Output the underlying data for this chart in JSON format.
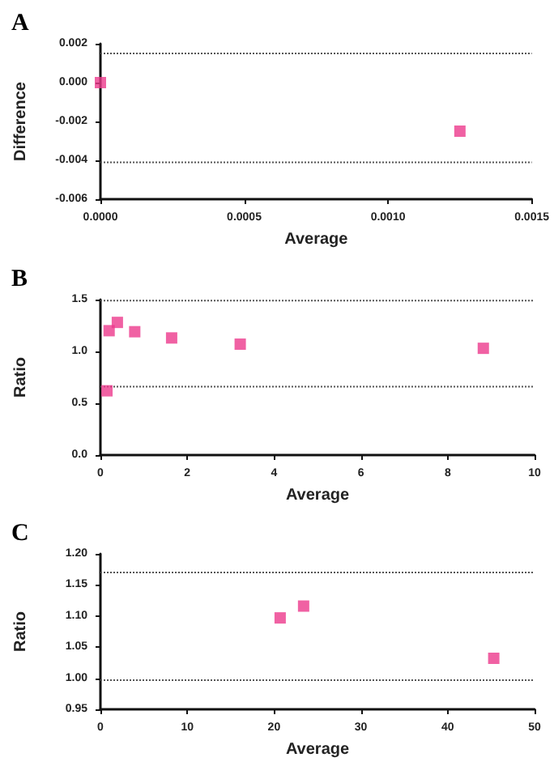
{
  "chart_data": [
    {
      "type": "scatter",
      "title": "A",
      "xlabel": "Average",
      "ylabel": "Difference",
      "x": [
        0,
        0.00125
      ],
      "values": [
        0,
        -0.0025
      ],
      "color": "#ec3a8c",
      "marker": "square",
      "grid": false,
      "xlim": [
        0,
        0.0015
      ],
      "xticks": [
        {
          "value": 0,
          "label": "0.0000"
        },
        0.0005,
        {
          "value": 0.001,
          "label": "0.0010"
        },
        0.0015
      ],
      "ylim": [
        -0.006,
        0.002
      ],
      "yticks": [
        {
          "value": -0.006,
          "label": "-0.006"
        },
        {
          "value": -0.004,
          "label": "-0.004"
        },
        {
          "value": -0.002,
          "label": "-0.002"
        },
        {
          "value": 0,
          "label": "0.000"
        },
        {
          "value": 0.002,
          "label": "0.002"
        }
      ],
      "ref_lines": [
        {
          "axis": "y",
          "value": 0.0015,
          "color": "#555555",
          "line_style": "dotted"
        },
        {
          "axis": "y",
          "value": -0.0041,
          "color": "#555555",
          "line_style": "dotted"
        }
      ]
    },
    {
      "type": "scatter",
      "title": "B",
      "xlabel": "Average",
      "ylabel": "Ratio",
      "x": [
        0.15,
        0.2,
        0.39,
        0.79,
        1.64,
        3.22,
        8.82
      ],
      "values": [
        0.62,
        1.2,
        1.28,
        1.19,
        1.13,
        1.07,
        1.03
      ],
      "color": "#ec3a8c",
      "marker": "square",
      "grid": false,
      "xlim": [
        0,
        10
      ],
      "xticks": [
        0,
        2,
        4,
        6,
        8,
        10
      ],
      "ylim": [
        0,
        1.5
      ],
      "yticks": [
        {
          "value": 0,
          "label": "0.0"
        },
        0.5,
        {
          "value": 1,
          "label": "1.0"
        },
        1.5
      ],
      "ref_lines": [
        {
          "axis": "y",
          "value": 1.49,
          "color": "#555555",
          "line_style": "dotted"
        },
        {
          "axis": "y",
          "value": 0.66,
          "color": "#555555",
          "line_style": "dotted"
        }
      ]
    },
    {
      "type": "scatter",
      "title": "C",
      "xlabel": "Average",
      "ylabel": "Ratio",
      "x": [
        20.7,
        23.4,
        45.3
      ],
      "values": [
        1.097,
        1.116,
        1.032
      ],
      "color": "#ec3a8c",
      "marker": "square",
      "grid": false,
      "xlim": [
        0,
        50
      ],
      "xticks": [
        0,
        10,
        20,
        30,
        40,
        50
      ],
      "ylim": [
        0.95,
        1.2
      ],
      "yticks": [
        0.95,
        {
          "value": 1,
          "label": "1.00"
        },
        1.05,
        {
          "value": 1.1,
          "label": "1.10"
        },
        1.15,
        {
          "value": 1.2,
          "label": "1.20"
        }
      ],
      "ref_lines": [
        {
          "axis": "y",
          "value": 1.17,
          "color": "#555555",
          "line_style": "dotted"
        },
        {
          "axis": "y",
          "value": 0.997,
          "color": "#555555",
          "line_style": "dotted"
        }
      ]
    }
  ]
}
